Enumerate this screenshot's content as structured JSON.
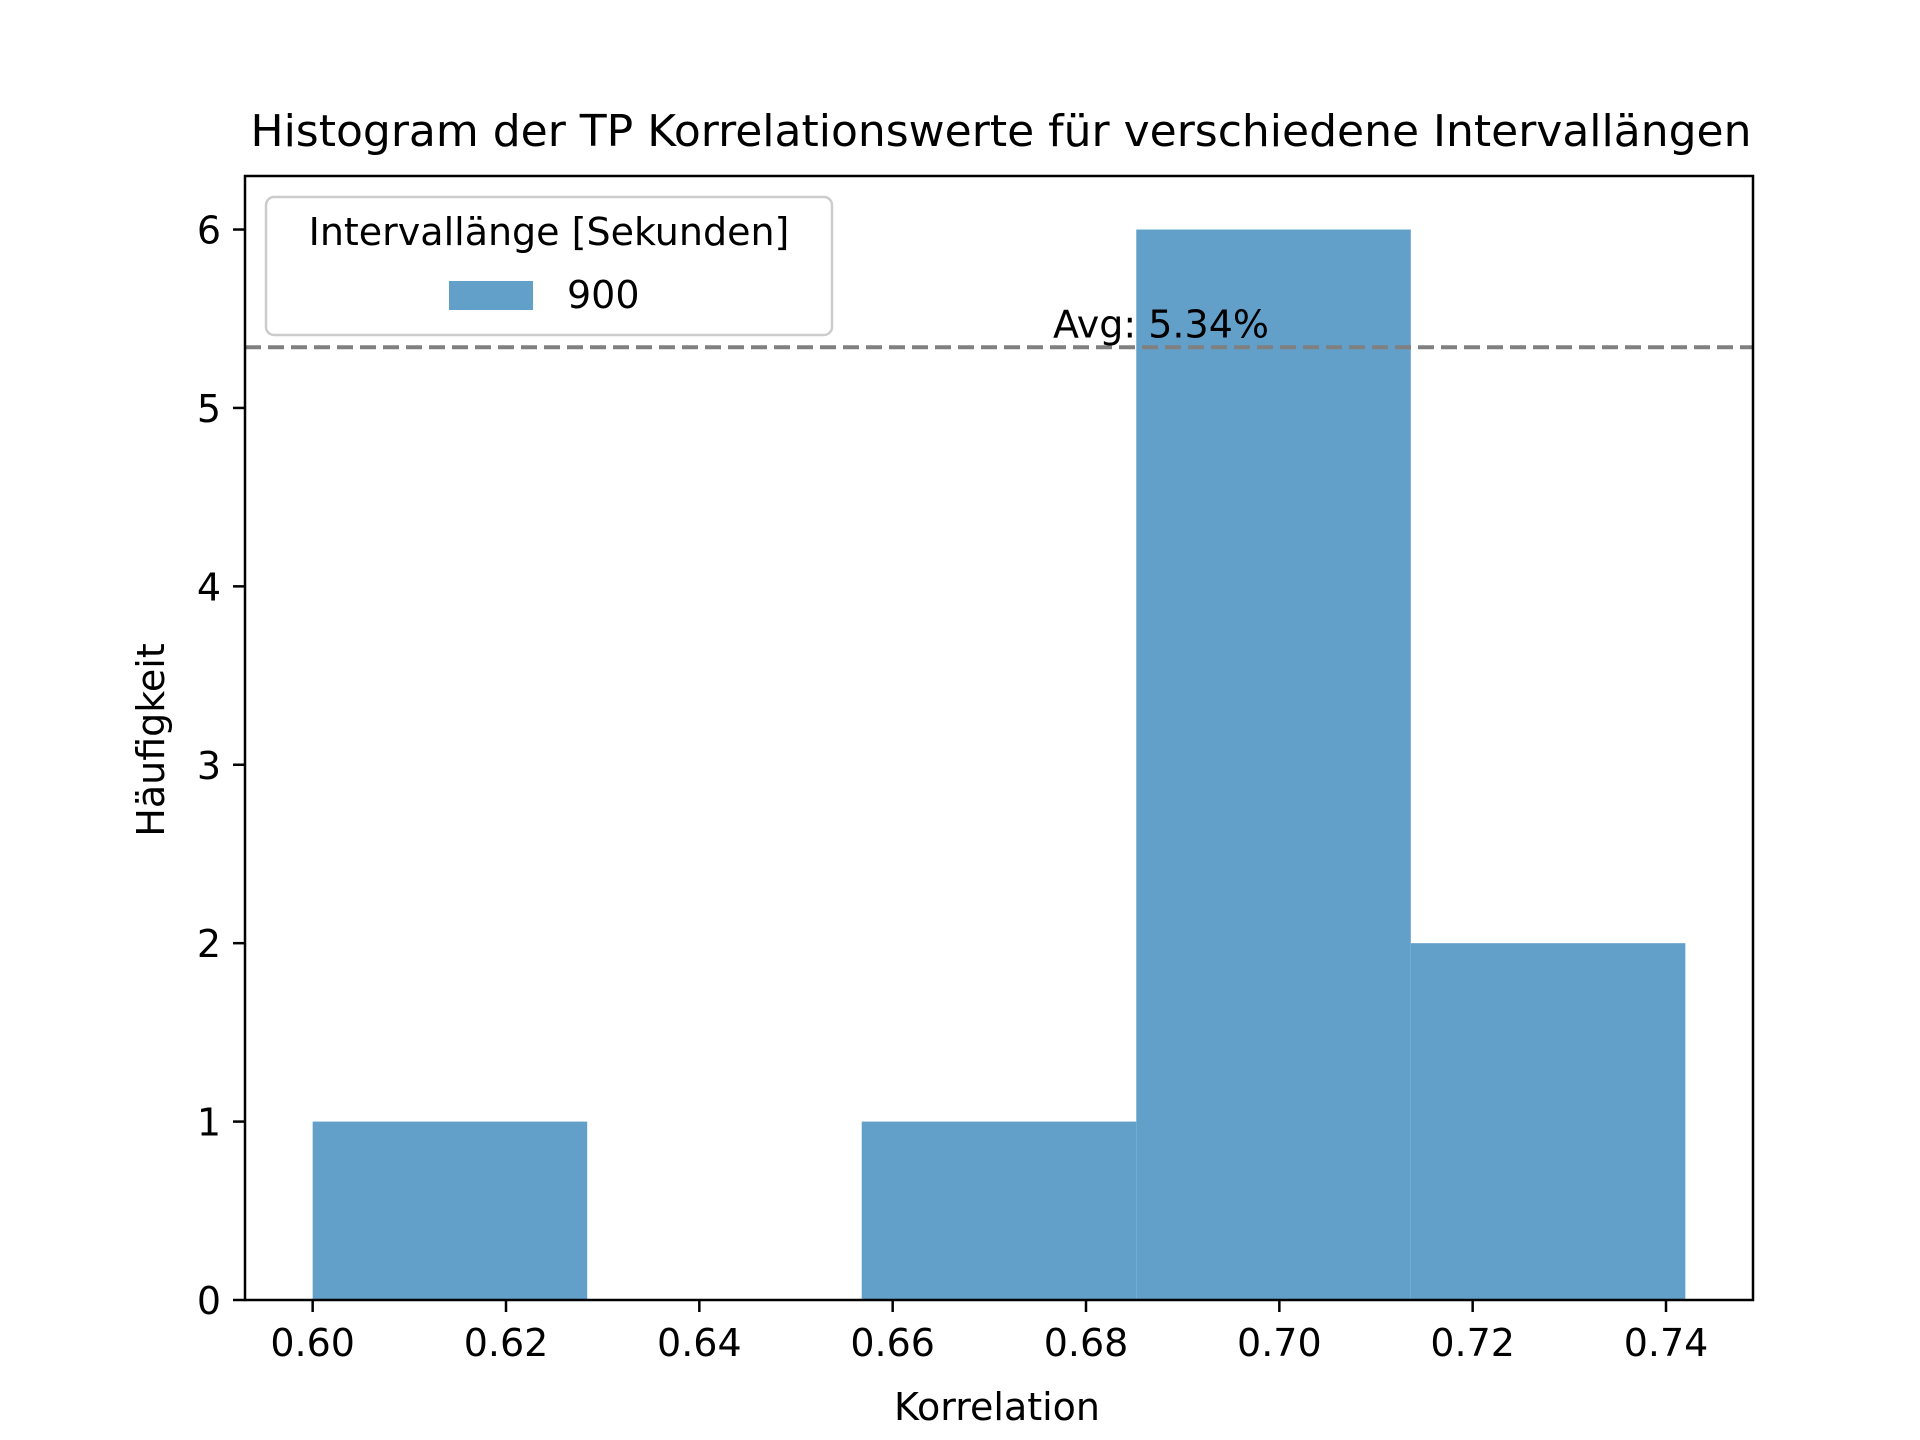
{
  "chart_data": {
    "type": "bar",
    "title": "Histogram der TP Korrelationswerte für verschiedene Intervallängen",
    "xlabel": "Korrelation",
    "ylabel": "Häufigkeit",
    "xlim": [
      0.593,
      0.749
    ],
    "ylim": [
      0,
      6.3
    ],
    "xticks": [
      "0.60",
      "0.62",
      "0.64",
      "0.66",
      "0.68",
      "0.70",
      "0.72",
      "0.74"
    ],
    "xtick_values": [
      0.6,
      0.62,
      0.64,
      0.66,
      0.68,
      0.7,
      0.72,
      0.74
    ],
    "yticks": [
      "0",
      "1",
      "2",
      "3",
      "4",
      "5",
      "6"
    ],
    "ytick_values": [
      0,
      1,
      2,
      3,
      4,
      5,
      6
    ],
    "legend": {
      "title": "Intervallänge [Sekunden]",
      "placement": "top-left"
    },
    "series": [
      {
        "name": "900",
        "color": "#62a0ca",
        "bins": [
          {
            "x0": 0.6,
            "x1": 0.6284,
            "count": 1
          },
          {
            "x0": 0.6284,
            "x1": 0.6568,
            "count": 0
          },
          {
            "x0": 0.6568,
            "x1": 0.6852,
            "count": 1
          },
          {
            "x0": 0.6852,
            "x1": 0.7136,
            "count": 6
          },
          {
            "x0": 0.7136,
            "x1": 0.742,
            "count": 2
          }
        ]
      }
    ],
    "reference_line": {
      "y": 5.34,
      "label": "Avg: 5.34%",
      "style": "dashed",
      "color": "#808080"
    },
    "grid": false
  }
}
